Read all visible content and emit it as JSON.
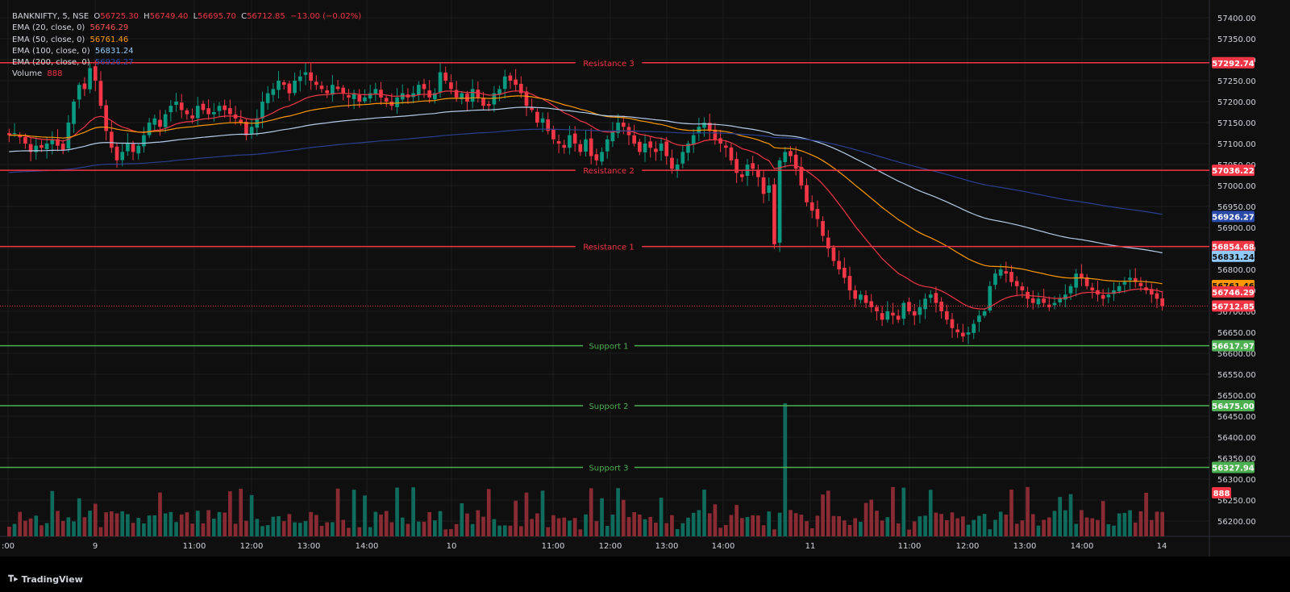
{
  "legend": {
    "symbol": "BANKNIFTY, 5, NSE",
    "o_label": "O",
    "o_value": "56725.30",
    "h_label": "H",
    "h_value": "56749.40",
    "l_label": "L",
    "l_value": "56695.70",
    "c_label": "C",
    "c_value": "56712.85",
    "change": "−13.00 (−0.02%)",
    "indicators": [
      {
        "label": "EMA (20, close, 0)",
        "value": "56746.29",
        "color": "#ff5252"
      },
      {
        "label": "EMA (50, close, 0)",
        "value": "56761.46",
        "color": "#ff9800"
      },
      {
        "label": "EMA (100, close, 0)",
        "value": "56831.24",
        "color": "#90caf9"
      },
      {
        "label": "EMA (200, close, 0)",
        "value": "56926.27",
        "color": "#2a4aa8"
      },
      {
        "label": "Volume",
        "value": "888",
        "color": "#f23645"
      }
    ]
  },
  "colors": {
    "up": "#089981",
    "down": "#f23645",
    "vol_up": "#0f6b5c",
    "vol_down": "#8a2b33",
    "resistance": "#f23645",
    "support": "#4caf50",
    "ema20": "#f23645",
    "ema50": "#ff9800",
    "ema100": "#b3cbe8",
    "ema200": "#2a3f8f",
    "background": "#0f0f0f",
    "grid": "#1c1c1c"
  },
  "price_axis": {
    "ticks": [
      "57400.00",
      "57350.00",
      "57300.00",
      "57250.00",
      "57200.00",
      "57150.00",
      "57100.00",
      "57050.00",
      "57000.00",
      "56950.00",
      "56900.00",
      "56850.00",
      "56800.00",
      "56750.00",
      "56700.00",
      "56650.00",
      "56600.00",
      "56550.00",
      "56500.00",
      "56450.00",
      "56400.00",
      "56350.00",
      "56300.00",
      "56250.00",
      "56200.00"
    ]
  },
  "time_axis": {
    "labels": [
      ":00",
      "9",
      "11:00",
      "12:00",
      "13:00",
      "14:00",
      "10",
      "11:00",
      "12:00",
      "13:00",
      "14:00",
      "11",
      "11:00",
      "12:00",
      "13:00",
      "14:00",
      "14"
    ]
  },
  "levels": [
    {
      "name": "Resistance 3",
      "value": 57292.74,
      "label": "57292.74",
      "kind": "resistance"
    },
    {
      "name": "Resistance 2",
      "value": 57036.22,
      "label": "57036.22",
      "kind": "resistance"
    },
    {
      "name": "Resistance 1",
      "value": 56854.68,
      "label": "56854.68",
      "kind": "resistance"
    },
    {
      "name": "Support 1",
      "value": 56617.97,
      "label": "56617.97",
      "kind": "support"
    },
    {
      "name": "Support 2",
      "value": 56475.0,
      "label": "56475.00",
      "kind": "support"
    },
    {
      "name": "Support 3",
      "value": 56327.94,
      "label": "56327.94",
      "kind": "support"
    }
  ],
  "price_tags": [
    {
      "label": "56926.27",
      "value": 56926.27,
      "color": "#2a4aa8",
      "text_color": "#ffffff"
    },
    {
      "label": "56831.24",
      "value": 56831.24,
      "color": "#90caf9",
      "text_color": "#0f0f0f"
    },
    {
      "label": "56761.46",
      "value": 56761.46,
      "color": "#ff9800",
      "text_color": "#0f0f0f"
    },
    {
      "label": "56746.29",
      "value": 56746.29,
      "color": "#f23645",
      "text_color": "#ffffff"
    },
    {
      "label": "56712.85",
      "value": 56712.85,
      "color": "#f23645",
      "text_color": "#ffffff"
    },
    {
      "label": "888",
      "value": null,
      "color": "#f23645",
      "text_color": "#ffffff"
    }
  ],
  "brand": "TradingView",
  "chart_data": {
    "type": "candlestick",
    "title": "BANKNIFTY, 5, NSE",
    "ylim": [
      56180,
      57420
    ],
    "grid": true,
    "closes": [
      57120,
      57125,
      57115,
      57100,
      57080,
      57095,
      57090,
      57100,
      57110,
      57095,
      57085,
      57150,
      57200,
      57240,
      57230,
      57280,
      57250,
      57190,
      57130,
      57090,
      57060,
      57080,
      57100,
      57080,
      57095,
      57120,
      57150,
      57160,
      57140,
      57170,
      57190,
      57200,
      57180,
      57170,
      57160,
      57190,
      57180,
      57170,
      57175,
      57190,
      57180,
      57170,
      57160,
      57150,
      57120,
      57140,
      57160,
      57200,
      57220,
      57230,
      57250,
      57240,
      57220,
      57250,
      57260,
      57270,
      57250,
      57240,
      57230,
      57220,
      57240,
      57230,
      57220,
      57210,
      57220,
      57200,
      57210,
      57220,
      57230,
      57210,
      57200,
      57190,
      57210,
      57220,
      57210,
      57220,
      57240,
      57230,
      57210,
      57220,
      57270,
      57250,
      57230,
      57210,
      57220,
      57200,
      57230,
      57210,
      57190,
      57190,
      57220,
      57230,
      57260,
      57250,
      57240,
      57220,
      57190,
      57180,
      57150,
      57160,
      57130,
      57110,
      57100,
      57090,
      57120,
      57100,
      57080,
      57110,
      57070,
      57060,
      57080,
      57110,
      57130,
      57150,
      57140,
      57120,
      57100,
      57080,
      57100,
      57090,
      57080,
      57100,
      57070,
      57040,
      57050,
      57080,
      57100,
      57120,
      57140,
      57150,
      57130,
      57110,
      57100,
      57090,
      57060,
      57030,
      57020,
      57050,
      57040,
      57020,
      56980,
      57000,
      56860,
      57060,
      57080,
      57070,
      57040,
      57000,
      56960,
      56940,
      56920,
      56880,
      56850,
      56820,
      56800,
      56780,
      56750,
      56730,
      56740,
      56720,
      56710,
      56700,
      56680,
      56700,
      56690,
      56680,
      56720,
      56700,
      56690,
      56710,
      56730,
      56740,
      56720,
      56700,
      56680,
      56660,
      56650,
      56640,
      56650,
      56670,
      56690,
      56700,
      56760,
      56790,
      56800,
      56790,
      56770,
      56760,
      56750,
      56730,
      56720,
      56730,
      56720,
      56710,
      56720,
      56730,
      56740,
      56760,
      56790,
      56780,
      56760,
      56750,
      56740,
      56730,
      56740,
      56750,
      56760,
      56770,
      56780,
      56770,
      56760,
      56750,
      56740,
      56730,
      56712.85
    ],
    "opens_note": "",
    "volume_peak_index": 144,
    "ema20_last": 56746.29,
    "ema50_last": 56761.46,
    "ema100_last": 56831.24,
    "ema200_last": 56926.27
  }
}
